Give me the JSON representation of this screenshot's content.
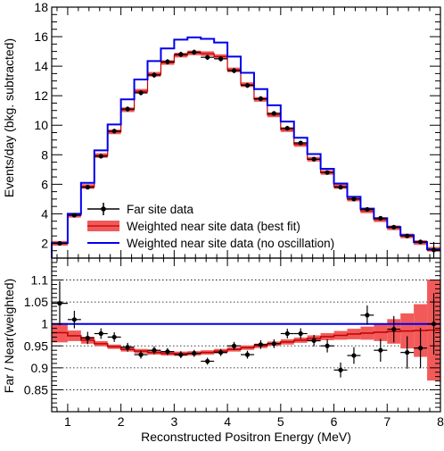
{
  "chart_data": [
    {
      "type": "line",
      "xlim": [
        0.7,
        8.0
      ],
      "ylim": [
        1.0,
        18.0
      ],
      "ylabel": "Events/day (bkg. subtracted)",
      "yticks": [
        "2",
        "4",
        "6",
        "8",
        "10",
        "12",
        "14",
        "16",
        "18"
      ],
      "bin_edges": [
        0.7,
        1.0,
        1.25,
        1.5,
        1.75,
        2.0,
        2.25,
        2.5,
        2.75,
        3.0,
        3.25,
        3.5,
        3.75,
        4.0,
        4.25,
        4.5,
        4.75,
        5.0,
        5.25,
        5.5,
        5.75,
        6.0,
        6.25,
        6.5,
        6.75,
        7.0,
        7.25,
        7.5,
        7.75,
        8.0
      ],
      "series": [
        {
          "name": "Far site data",
          "style": "points-with-errors",
          "color": "#000000",
          "x": [
            0.85,
            1.125,
            1.375,
            1.625,
            1.875,
            2.125,
            2.375,
            2.625,
            2.875,
            3.125,
            3.375,
            3.625,
            3.875,
            4.125,
            4.375,
            4.625,
            4.875,
            5.125,
            5.375,
            5.625,
            5.875,
            6.125,
            6.375,
            6.625,
            6.875,
            7.125,
            7.375,
            7.625,
            7.875
          ],
          "values": [
            2.0,
            3.9,
            5.8,
            7.9,
            9.6,
            11.1,
            12.2,
            13.4,
            14.3,
            14.8,
            14.95,
            14.6,
            14.5,
            13.7,
            12.7,
            11.8,
            10.8,
            9.8,
            8.8,
            7.7,
            6.8,
            5.8,
            5.0,
            4.3,
            3.7,
            3.1,
            2.5,
            2.1,
            1.55
          ],
          "errors": [
            0.12,
            0.12,
            0.14,
            0.15,
            0.16,
            0.17,
            0.17,
            0.18,
            0.18,
            0.18,
            0.18,
            0.18,
            0.18,
            0.18,
            0.17,
            0.17,
            0.16,
            0.16,
            0.15,
            0.15,
            0.14,
            0.13,
            0.13,
            0.12,
            0.12,
            0.11,
            0.11,
            0.1,
            0.55
          ]
        },
        {
          "name": "Weighted near site data (best fit)",
          "style": "band",
          "color": "#ff0000",
          "values": [
            2.0,
            3.9,
            5.85,
            7.95,
            9.55,
            11.05,
            12.3,
            13.45,
            14.25,
            14.75,
            14.9,
            14.85,
            14.65,
            13.75,
            12.75,
            11.75,
            10.7,
            9.7,
            8.7,
            7.7,
            6.8,
            5.85,
            5.0,
            4.2,
            3.6,
            3.05,
            2.5,
            2.05,
            1.6
          ]
        },
        {
          "name": "Weighted near site data (no oscillation)",
          "style": "step",
          "color": "#0000ff",
          "values": [
            2.02,
            4.0,
            6.1,
            8.3,
            10.05,
            11.75,
            13.1,
            14.35,
            15.2,
            15.8,
            15.95,
            15.85,
            15.6,
            14.65,
            13.55,
            12.45,
            11.35,
            10.25,
            9.15,
            8.05,
            7.05,
            6.05,
            5.15,
            4.35,
            3.7,
            3.1,
            2.55,
            2.08,
            1.6
          ]
        }
      ],
      "legend": {
        "position": "bottom-left"
      }
    },
    {
      "type": "line",
      "xlim": [
        0.7,
        8.0
      ],
      "ylim": [
        0.8,
        1.15
      ],
      "xlabel": "Reconstructed Positron Energy (MeV)",
      "ylabel": "Far / Near(weighted)",
      "xticks": [
        "1",
        "2",
        "3",
        "4",
        "5",
        "6",
        "7",
        "8"
      ],
      "yticks": [
        "0.85",
        "0.9",
        "0.95",
        "1",
        "1.05",
        "1.1"
      ],
      "grid": "horizontal-dotted",
      "series": [
        {
          "name": "Far site data",
          "style": "points-with-errors",
          "color": "#000000",
          "x": [
            0.85,
            1.125,
            1.375,
            1.625,
            1.875,
            2.125,
            2.375,
            2.625,
            2.875,
            3.125,
            3.375,
            3.625,
            3.875,
            4.125,
            4.375,
            4.625,
            4.875,
            5.125,
            5.375,
            5.625,
            5.875,
            6.125,
            6.375,
            6.625,
            6.875,
            7.125,
            7.375,
            7.625,
            7.875
          ],
          "values": [
            1.047,
            1.01,
            0.968,
            0.978,
            0.97,
            0.947,
            0.93,
            0.94,
            0.937,
            0.93,
            0.933,
            0.915,
            0.935,
            0.95,
            0.93,
            0.953,
            0.955,
            0.978,
            0.978,
            0.962,
            0.95,
            0.895,
            0.928,
            1.02,
            0.94,
            0.988,
            0.935,
            0.945,
            1.0
          ],
          "errors": [
            0.05,
            0.02,
            0.014,
            0.012,
            0.011,
            0.01,
            0.009,
            0.009,
            0.008,
            0.008,
            0.008,
            0.008,
            0.008,
            0.009,
            0.009,
            0.01,
            0.01,
            0.011,
            0.012,
            0.013,
            0.015,
            0.017,
            0.019,
            0.022,
            0.026,
            0.03,
            0.037,
            0.046,
            0.07
          ]
        },
        {
          "name": "Weighted near site data (best fit)",
          "style": "band",
          "color": "#ff0000",
          "values": [
            0.98,
            0.973,
            0.963,
            0.955,
            0.948,
            0.942,
            0.938,
            0.935,
            0.933,
            0.932,
            0.933,
            0.935,
            0.938,
            0.942,
            0.946,
            0.95,
            0.955,
            0.959,
            0.963,
            0.967,
            0.971,
            0.974,
            0.977,
            0.979,
            0.981,
            0.983,
            0.984,
            0.985,
            0.986
          ],
          "band_halfwidth": [
            0.022,
            0.012,
            0.008,
            0.006,
            0.005,
            0.005,
            0.005,
            0.005,
            0.005,
            0.005,
            0.005,
            0.005,
            0.005,
            0.005,
            0.005,
            0.005,
            0.005,
            0.006,
            0.006,
            0.007,
            0.008,
            0.01,
            0.012,
            0.015,
            0.02,
            0.028,
            0.04,
            0.06,
            0.115
          ]
        },
        {
          "name": "Weighted near site data (no oscillation)",
          "style": "hline",
          "color": "#0000ff",
          "value": 1.0
        }
      ]
    }
  ]
}
